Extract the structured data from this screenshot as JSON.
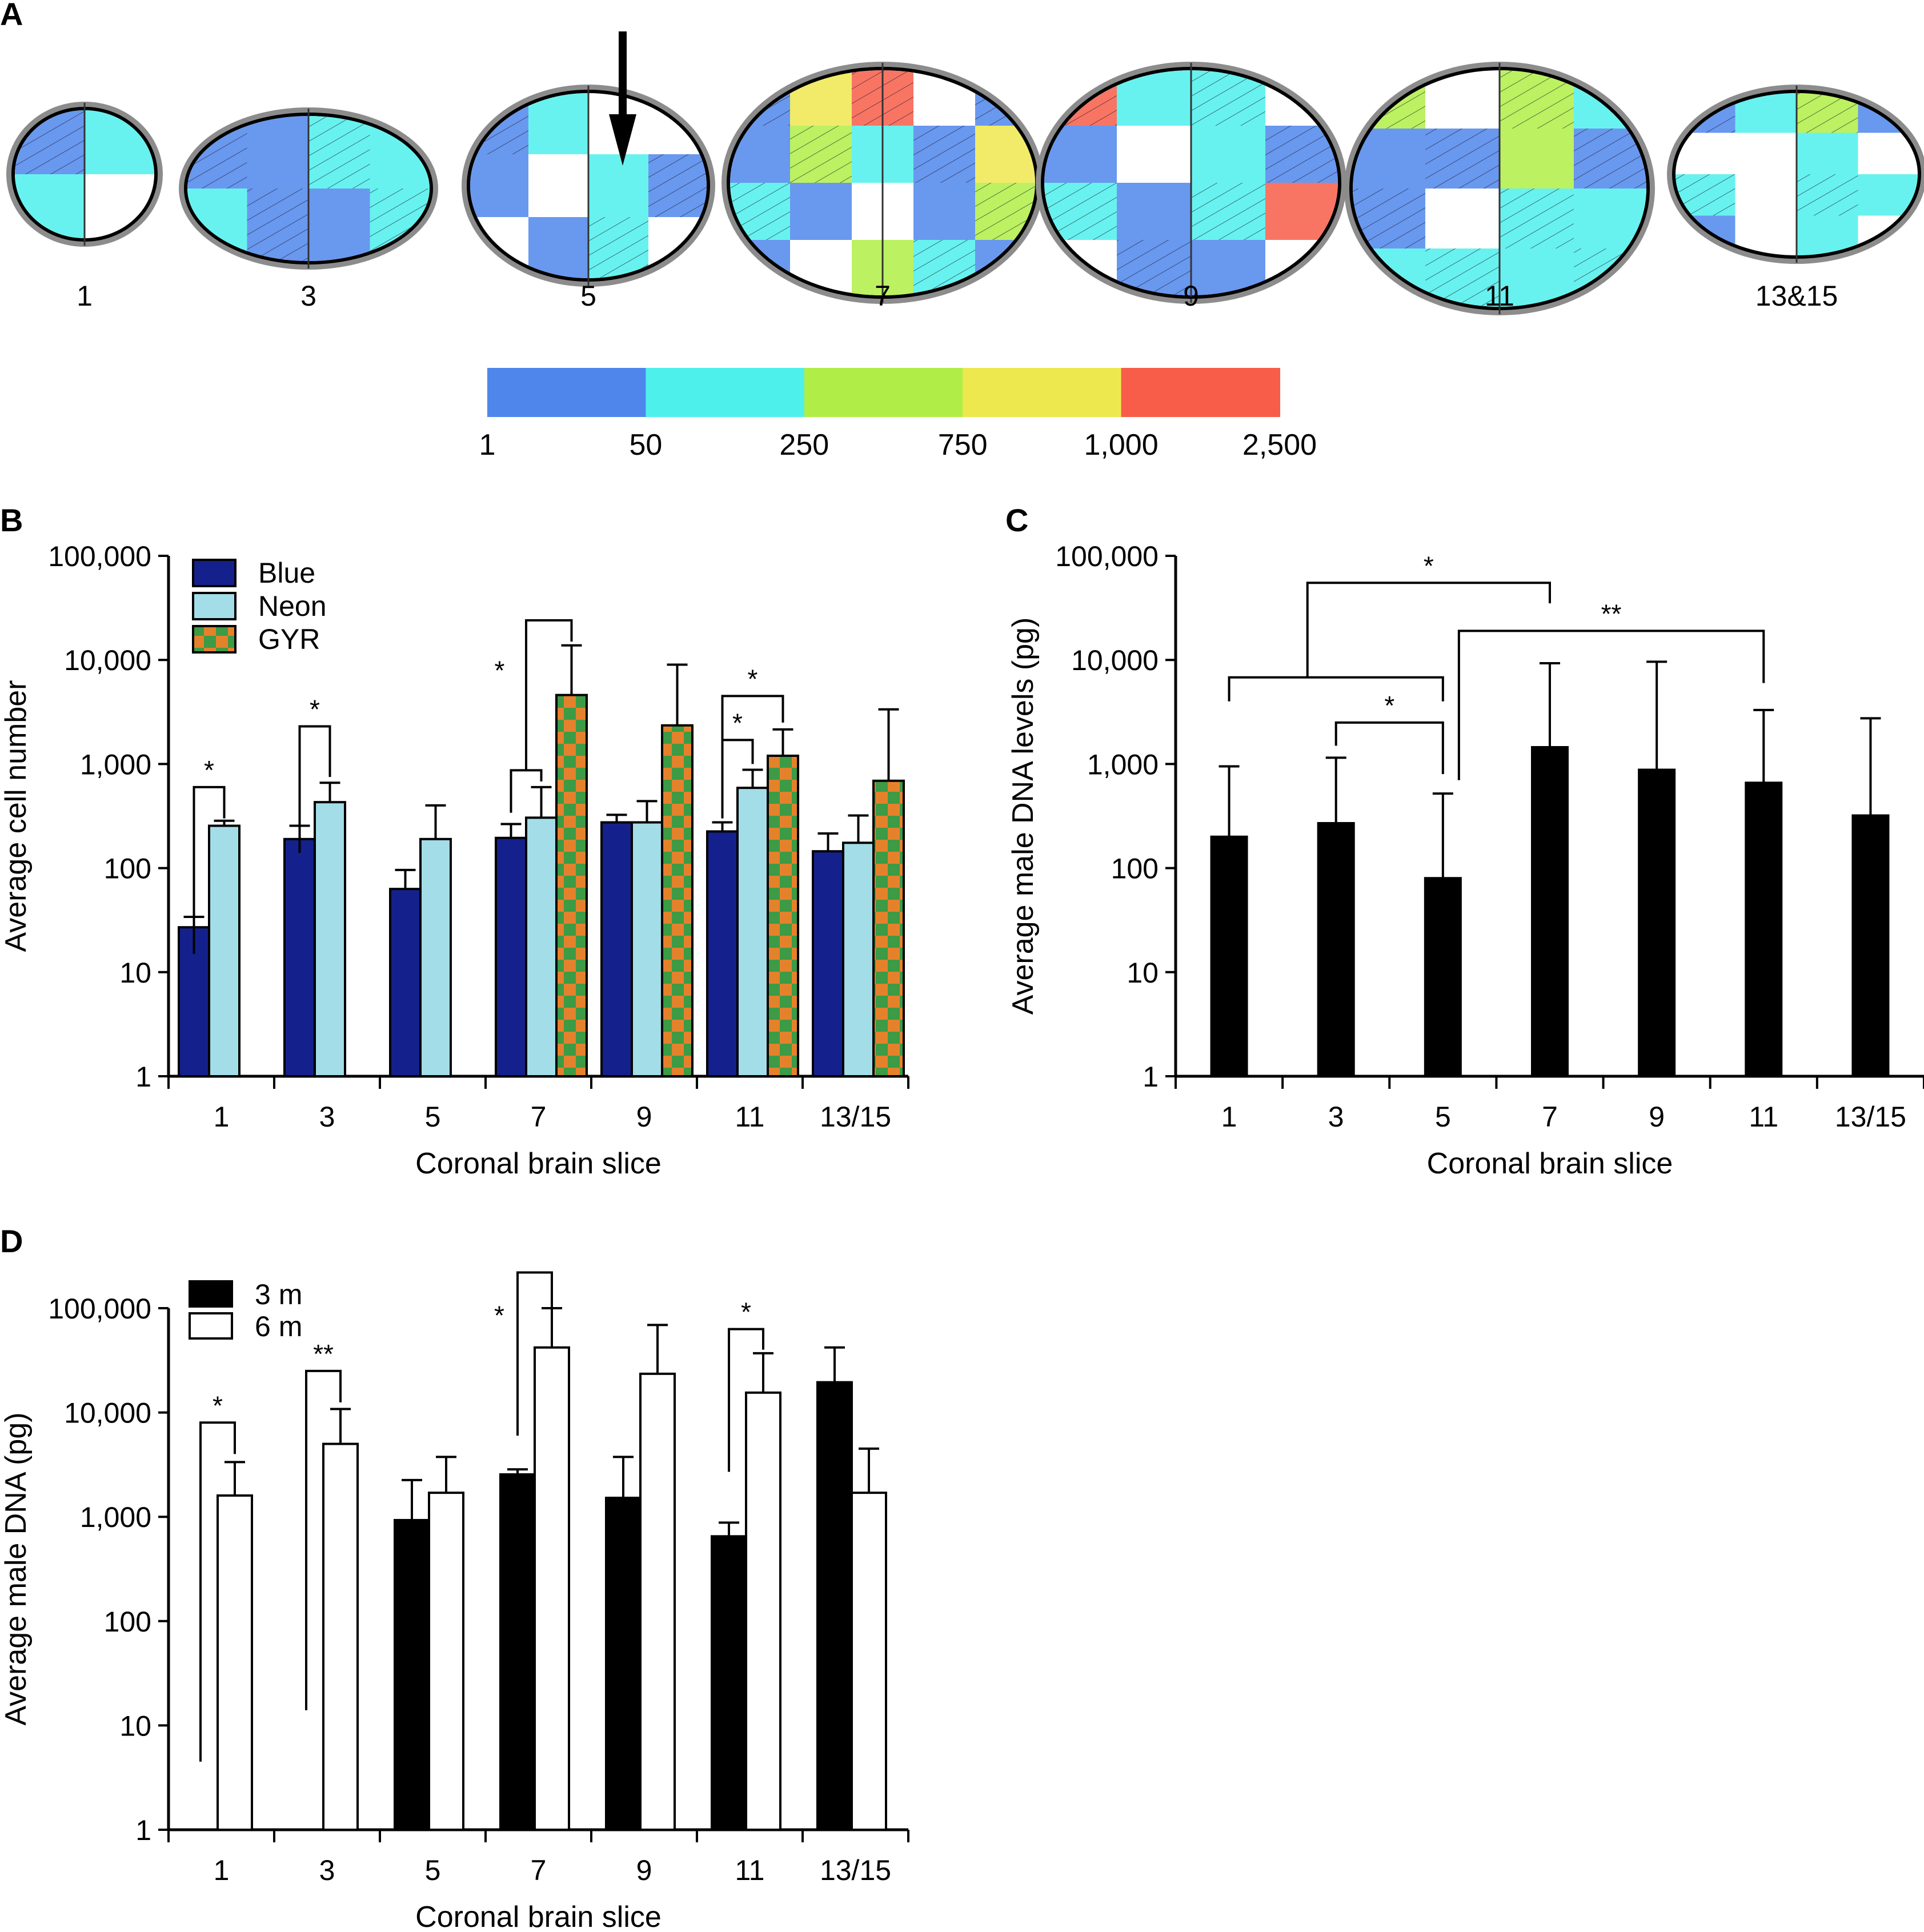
{
  "panel_labels": {
    "a": "A",
    "b": "B",
    "c": "C",
    "d": "D"
  },
  "panel_a": {
    "slice_labels": [
      "1",
      "3",
      "5",
      "7",
      "9",
      "11",
      "13&15"
    ],
    "arrow": "down-arrow pointing to slice 5",
    "colorscale": {
      "colors": [
        "#4f86ec",
        "#4ef0ec",
        "#b0ee47",
        "#eee84f",
        "#f75d49"
      ],
      "tick_labels": [
        "1",
        "50",
        "250",
        "750",
        "1,000",
        "2,500"
      ]
    }
  },
  "chart_data": [
    {
      "id": "B",
      "type": "bar",
      "scale": "log",
      "title": "",
      "xlabel": "Coronal brain slice",
      "ylabel": "Average cell number",
      "ylim": [
        1,
        100000
      ],
      "yticks": [
        1,
        10,
        100,
        1000,
        10000,
        100000
      ],
      "ytick_labels": [
        "1",
        "10",
        "100",
        "1,000",
        "10,000",
        "100,000"
      ],
      "categories": [
        "1",
        "3",
        "5",
        "7",
        "9",
        "11",
        "13/15"
      ],
      "legend": "top-left",
      "series": [
        {
          "name": "Blue",
          "color": "#14218c",
          "values": [
            27,
            190,
            63,
            195,
            275,
            225,
            145
          ],
          "errors_upper": [
            34,
            255,
            96,
            265,
            325,
            275,
            215
          ]
        },
        {
          "name": "Neon",
          "color": "#a3dde8",
          "values": [
            255,
            430,
            190,
            305,
            275,
            590,
            175
          ],
          "errors_upper": [
            285,
            660,
            400,
            600,
            440,
            880,
            320
          ]
        },
        {
          "name": "GYR",
          "color": "#e4822c",
          "pattern_color": "#3d9a45",
          "values": [
            null,
            null,
            null,
            4600,
            2350,
            1200,
            690
          ],
          "errors_upper": [
            null,
            null,
            null,
            13800,
            9000,
            2150,
            3350
          ]
        }
      ],
      "significance": [
        {
          "slice": "1",
          "pair": [
            "Blue",
            "Neon"
          ],
          "label": "*"
        },
        {
          "slice": "3",
          "pair": [
            "Blue",
            "Neon"
          ],
          "label": "*"
        },
        {
          "slice": "7",
          "pair": [
            "Blue+Neon",
            "GYR"
          ],
          "label": "*"
        },
        {
          "slice": "11",
          "pair": [
            "Blue",
            "Neon"
          ],
          "label": "*"
        },
        {
          "slice": "11",
          "pair": [
            "Blue",
            "GYR"
          ],
          "label": "*"
        }
      ]
    },
    {
      "id": "C",
      "type": "bar",
      "scale": "log",
      "title": "",
      "xlabel": "Coronal brain slice",
      "ylabel": "Average male DNA levels (pg)",
      "ylim": [
        1,
        100000
      ],
      "yticks": [
        1,
        10,
        100,
        1000,
        10000,
        100000
      ],
      "ytick_labels": [
        "1",
        "10",
        "100",
        "1,000",
        "10,000",
        "100,000"
      ],
      "categories": [
        "1",
        "3",
        "5",
        "7",
        "9",
        "11",
        "13/15"
      ],
      "series": [
        {
          "name": "Male DNA",
          "color": "#000000",
          "values": [
            200,
            270,
            80,
            1450,
            880,
            660,
            320
          ],
          "errors_upper": [
            950,
            1150,
            520,
            9300,
            9600,
            3300,
            2750
          ]
        }
      ],
      "significance": [
        {
          "from": "1-5",
          "to": "7",
          "label": "*"
        },
        {
          "from": "3",
          "to": "5",
          "label": "*"
        },
        {
          "from": "5",
          "to": "11",
          "label": "**"
        }
      ]
    },
    {
      "id": "D",
      "type": "bar",
      "scale": "log",
      "title": "",
      "xlabel": "Coronal brain slice",
      "ylabel": "Average male DNA (pg)",
      "ylim": [
        1,
        100000
      ],
      "yticks": [
        1,
        10,
        100,
        1000,
        10000,
        100000
      ],
      "ytick_labels": [
        "1",
        "10",
        "100",
        "1,000",
        "10,000",
        "100,000"
      ],
      "categories": [
        "1",
        "3",
        "5",
        "7",
        "9",
        "11",
        "13/15"
      ],
      "legend": "top-left",
      "series": [
        {
          "name": "3 m",
          "color": "#000000",
          "values": [
            null,
            null,
            930,
            2550,
            1520,
            650,
            19500
          ],
          "errors_upper": [
            null,
            null,
            2250,
            2850,
            3750,
            880,
            42000
          ]
        },
        {
          "name": "6 m",
          "color": "#ffffff",
          "values": [
            1600,
            5000,
            1700,
            42000,
            23500,
            15500,
            1700
          ],
          "errors_upper": [
            3350,
            10800,
            3750,
            100000,
            69000,
            37000,
            4500
          ]
        }
      ],
      "significance": [
        {
          "slice": "1",
          "label": "*"
        },
        {
          "slice": "3",
          "label": "**"
        },
        {
          "slice": "7",
          "label": "*"
        },
        {
          "slice": "11",
          "label": "*"
        }
      ]
    }
  ]
}
